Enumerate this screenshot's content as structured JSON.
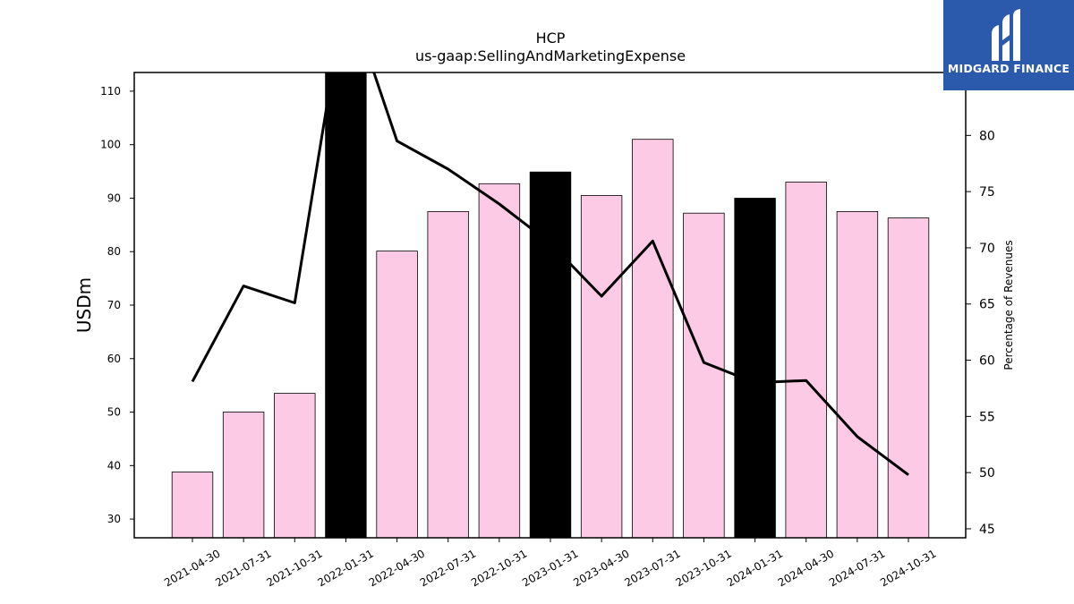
{
  "chart_data": {
    "type": "bar",
    "title": "HCP",
    "subtitle": "us-gaap:SellingAndMarketingExpense",
    "ylabel": "USDm",
    "ylabel_right": "Percentage of Revenues",
    "ylim": [
      26.5,
      113.5
    ],
    "ylim_right": [
      44.2,
      85.6
    ],
    "yticks": [
      30,
      40,
      50,
      60,
      70,
      80,
      90,
      100,
      110
    ],
    "yticks_right": [
      45,
      50,
      55,
      60,
      65,
      70,
      75,
      80
    ],
    "categories": [
      "2021-04-30",
      "2021-07-31",
      "2021-10-31",
      "2022-01-31",
      "2022-04-30",
      "2022-07-31",
      "2022-10-31",
      "2023-01-31",
      "2023-04-30",
      "2023-07-31",
      "2023-10-31",
      "2024-01-31",
      "2024-04-30",
      "2024-07-31",
      "2024-10-31"
    ],
    "values": [
      38.8,
      50.0,
      53.5,
      113.5,
      80.1,
      87.5,
      92.7,
      94.9,
      90.5,
      101.0,
      87.2,
      90.0,
      93.0,
      87.5,
      86.3
    ],
    "bar_colors": [
      "#fccae4",
      "#fccae4",
      "#fccae4",
      "#000000",
      "#fccae4",
      "#fccae4",
      "#fccae4",
      "#000000",
      "#fccae4",
      "#fccae4",
      "#fccae4",
      "#000000",
      "#fccae4",
      "#fccae4",
      "#fccae4"
    ],
    "line_values": [
      58.1,
      66.6,
      65.1,
      93.0,
      79.5,
      77.0,
      73.9,
      70.4,
      65.7,
      70.6,
      59.8,
      58.0,
      58.2,
      53.2,
      49.8
    ],
    "line_color": "#000000",
    "grid": false
  },
  "logo": {
    "text": "MIDGARD FINANCE"
  }
}
